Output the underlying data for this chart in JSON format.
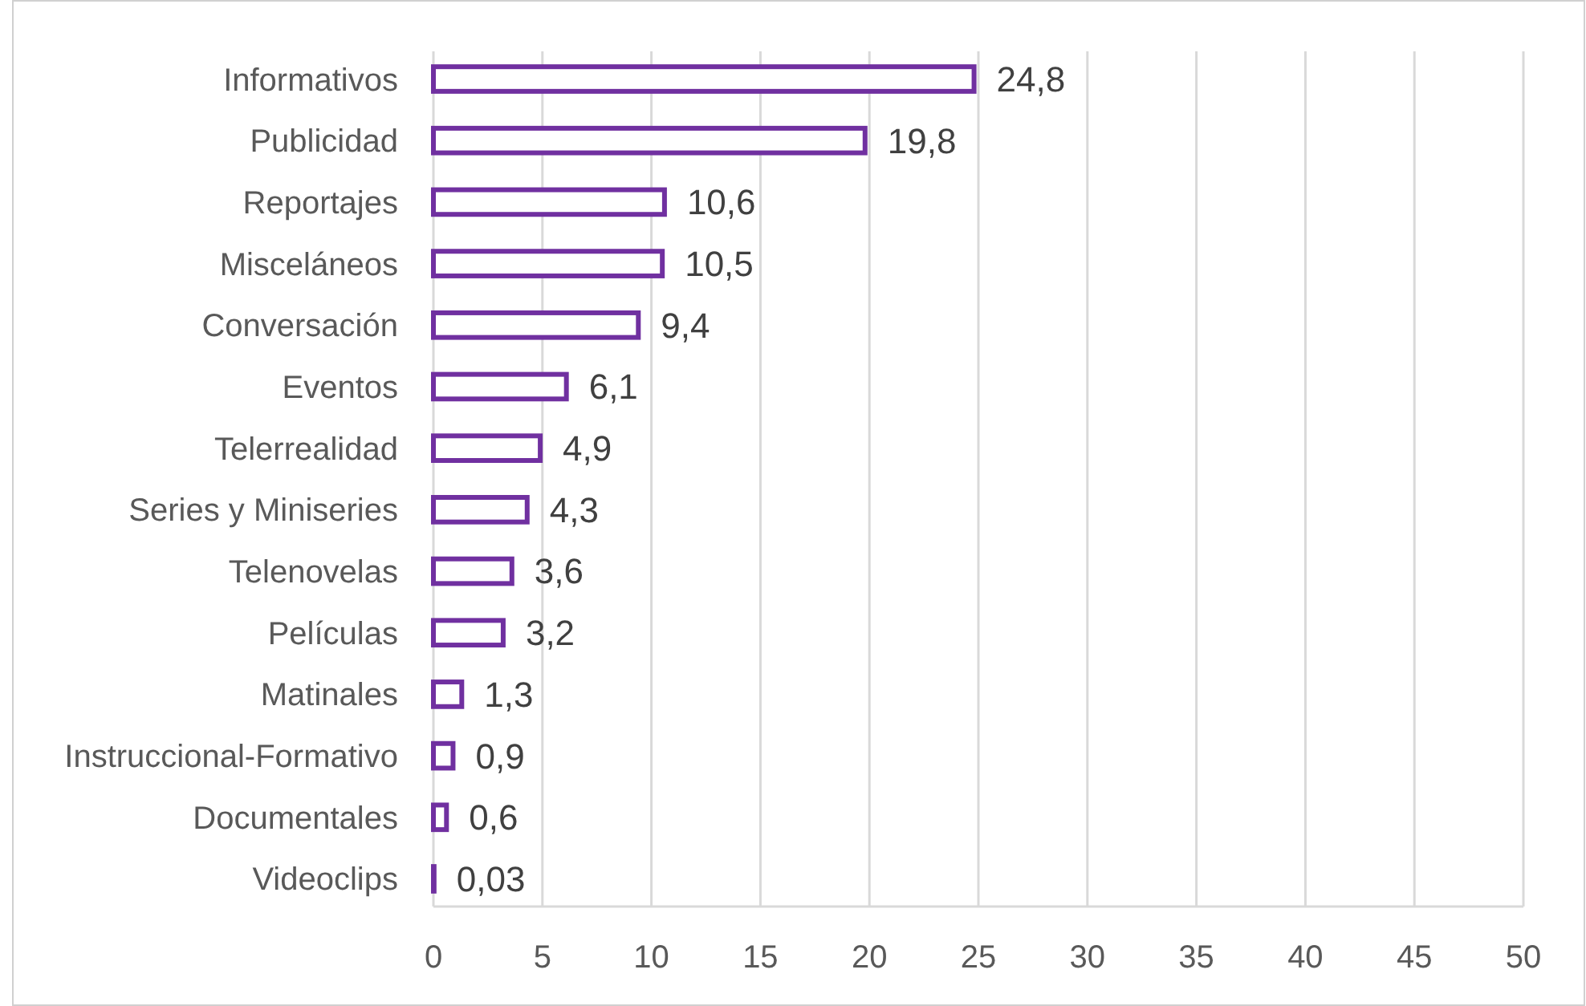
{
  "chart_data": {
    "type": "bar",
    "orientation": "horizontal",
    "categories": [
      "Informativos",
      "Publicidad",
      "Reportajes",
      "Misceláneos",
      "Conversación",
      "Eventos",
      "Telerrealidad",
      "Series y Miniseries",
      "Telenovelas",
      "Películas",
      "Matinales",
      "Instruccional-Formativo",
      "Documentales",
      "Videoclips"
    ],
    "values": [
      24.8,
      19.8,
      10.6,
      10.5,
      9.4,
      6.1,
      4.9,
      4.3,
      3.6,
      3.2,
      1.3,
      0.9,
      0.6,
      0.03
    ],
    "value_labels": [
      "24,8",
      "19,8",
      "10,6",
      "10,5",
      "9,4",
      "6,1",
      "4,9",
      "4,3",
      "3,6",
      "3,2",
      "1,3",
      "0,9",
      "0,6",
      "0,03"
    ],
    "color": "#7030a0",
    "xlim": [
      0,
      50
    ],
    "xticks": [
      0,
      5,
      10,
      15,
      20,
      25,
      30,
      35,
      40,
      45,
      50
    ],
    "grid": "x"
  }
}
